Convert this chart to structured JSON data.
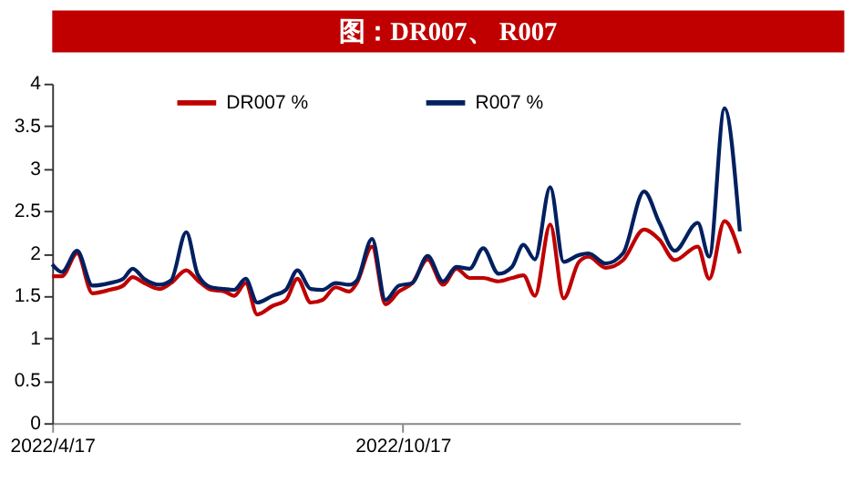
{
  "chart_data": {
    "type": "line",
    "title": "图：DR007、 R007",
    "x": [
      "2022-04-17",
      "2022-04-22",
      "2022-04-30",
      "2022-05-08",
      "2022-05-17",
      "2022-05-24",
      "2022-05-29",
      "2022-06-04",
      "2022-06-12",
      "2022-06-18",
      "2022-06-26",
      "2022-07-02",
      "2022-07-09",
      "2022-07-16",
      "2022-07-21",
      "2022-07-27",
      "2022-08-02",
      "2022-08-10",
      "2022-08-17",
      "2022-08-23",
      "2022-08-30",
      "2022-09-05",
      "2022-09-12",
      "2022-09-19",
      "2022-09-23",
      "2022-10-01",
      "2022-10-08",
      "2022-10-15",
      "2022-10-22",
      "2022-10-30",
      "2022-11-07",
      "2022-11-14",
      "2022-11-21",
      "2022-11-28",
      "2022-12-06",
      "2022-12-13",
      "2022-12-19",
      "2022-12-25",
      "2023-01-02",
      "2023-01-09",
      "2023-01-17",
      "2023-01-22",
      "2023-01-31",
      "2023-02-09",
      "2023-02-20",
      "2023-02-28",
      "2023-03-08",
      "2023-03-20",
      "2023-03-26",
      "2023-04-03",
      "2023-04-11"
    ],
    "series": [
      {
        "name": "DR007 %",
        "color": "#c00000",
        "values": [
          1.73,
          1.73,
          2.0,
          1.53,
          1.57,
          1.62,
          1.72,
          1.65,
          1.58,
          1.65,
          1.8,
          1.68,
          1.57,
          1.55,
          1.5,
          1.65,
          1.28,
          1.38,
          1.45,
          1.7,
          1.42,
          1.45,
          1.6,
          1.55,
          1.65,
          2.08,
          1.4,
          1.55,
          1.65,
          1.93,
          1.63,
          1.82,
          1.71,
          1.71,
          1.67,
          1.71,
          1.74,
          1.5,
          2.34,
          1.47,
          1.9,
          1.96,
          1.83,
          1.92,
          2.28,
          2.16,
          1.92,
          2.08,
          1.7,
          2.38,
          2.0
        ]
      },
      {
        "name": "R007 %",
        "color": "#002060",
        "values": [
          1.87,
          1.78,
          2.03,
          1.62,
          1.65,
          1.7,
          1.82,
          1.7,
          1.63,
          1.68,
          2.25,
          1.75,
          1.6,
          1.58,
          1.57,
          1.7,
          1.42,
          1.5,
          1.57,
          1.8,
          1.58,
          1.57,
          1.65,
          1.63,
          1.68,
          2.17,
          1.45,
          1.62,
          1.65,
          1.97,
          1.67,
          1.84,
          1.82,
          2.06,
          1.76,
          1.84,
          2.1,
          1.93,
          2.78,
          1.9,
          1.98,
          2.0,
          1.88,
          2.0,
          2.73,
          2.36,
          2.03,
          2.36,
          1.96,
          3.71,
          2.26
        ]
      }
    ],
    "xlim": [
      "2022-04-17",
      "2023-04-11"
    ],
    "xticks": [
      {
        "value": "2022-04-17",
        "label": "2022/4/17"
      },
      {
        "value": "2022-10-17",
        "label": "2022/10/17"
      }
    ],
    "ylim": [
      0,
      4
    ],
    "yticks": [
      0,
      0.5,
      1,
      1.5,
      2,
      2.5,
      3,
      3.5,
      4
    ],
    "grid": false,
    "legend": "top",
    "line_style": "solid",
    "marker": "none"
  }
}
